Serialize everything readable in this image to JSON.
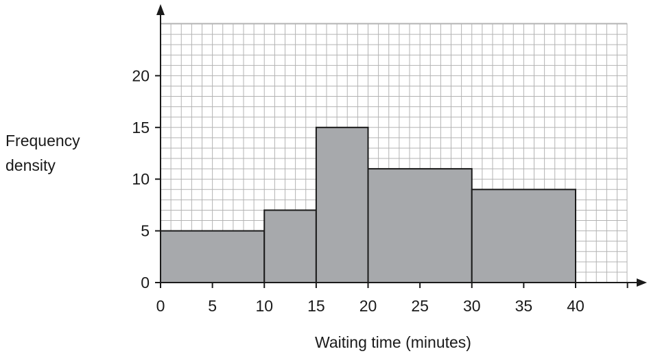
{
  "chart_data": {
    "type": "bar",
    "title": "",
    "xlabel": "Waiting time (minutes)",
    "ylabel_lines": [
      "Frequency",
      "density"
    ],
    "xlim": [
      0,
      45
    ],
    "ylim": [
      0,
      26
    ],
    "grid": true,
    "x_ticks": [
      "0",
      "5",
      "10",
      "15",
      "20",
      "25",
      "30",
      "35",
      "40"
    ],
    "y_ticks": [
      "0",
      "5",
      "10",
      "15",
      "20"
    ],
    "bars": [
      {
        "x_start": 0,
        "x_end": 10,
        "value": 5
      },
      {
        "x_start": 10,
        "x_end": 15,
        "value": 7
      },
      {
        "x_start": 15,
        "x_end": 20,
        "value": 15
      },
      {
        "x_start": 20,
        "x_end": 30,
        "value": 11
      },
      {
        "x_start": 30,
        "x_end": 40,
        "value": 9
      }
    ]
  },
  "colors": {
    "bar_fill": "#a7a9ac",
    "grid": "#b3b3b3",
    "axis": "#1a1a1a"
  }
}
